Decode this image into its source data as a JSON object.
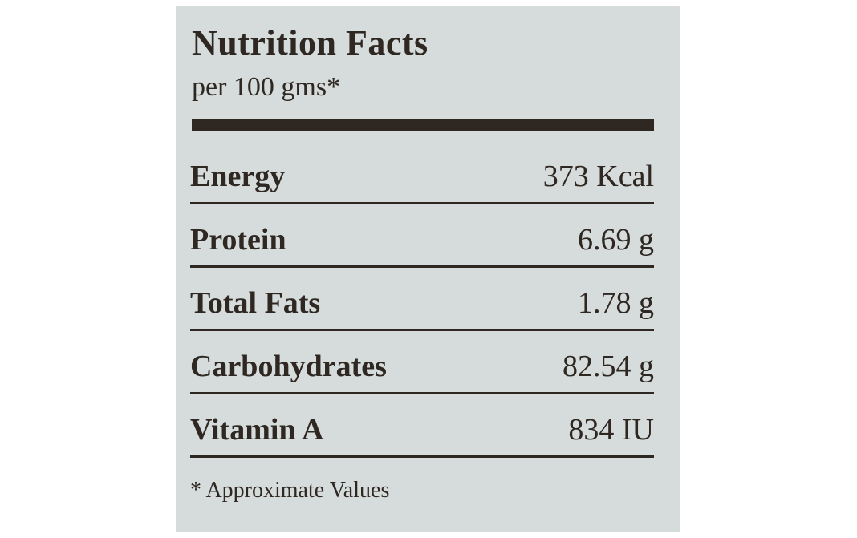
{
  "header": {
    "title": "Nutrition Facts",
    "subtitle": "per 100 gms*"
  },
  "table": {
    "rows": [
      [
        "Energy",
        "373 Kcal"
      ],
      [
        "Protein",
        "6.69 g"
      ],
      [
        "Total Fats",
        "1.78 g"
      ],
      [
        "Carbohydrates",
        "82.54 g"
      ],
      [
        "Vitamin A",
        "834 IU"
      ]
    ]
  },
  "footnote": "* Approximate Values"
}
